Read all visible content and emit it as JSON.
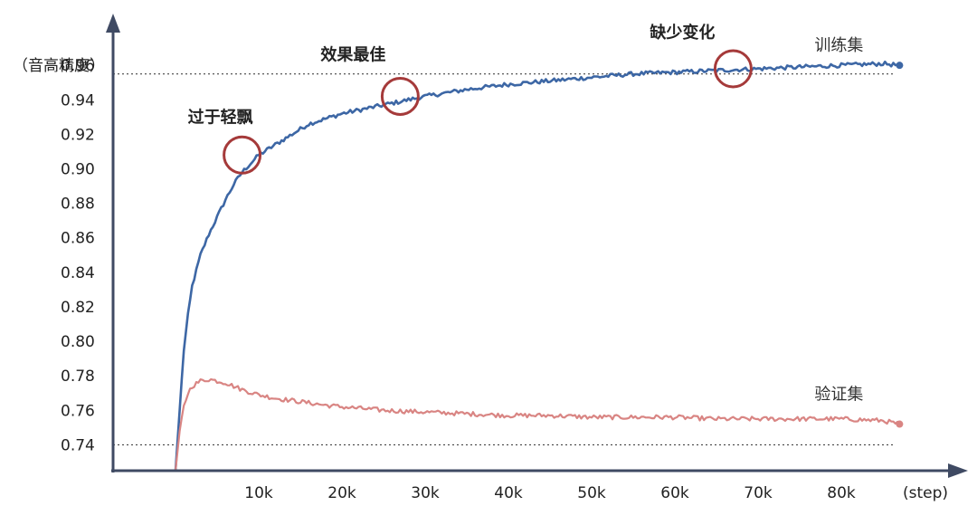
{
  "chart_data": {
    "type": "line",
    "title": "",
    "xlabel": "(step)",
    "ylabel": "（音高精度）",
    "xlim": [
      -7500,
      95000
    ],
    "ylim": [
      0.725,
      0.99
    ],
    "x_ticks": [
      10000,
      20000,
      30000,
      40000,
      50000,
      60000,
      70000,
      80000
    ],
    "x_tick_labels": [
      "10k",
      "20k",
      "30k",
      "40k",
      "50k",
      "60k",
      "70k",
      "80k"
    ],
    "y_ticks": [
      0.74,
      0.76,
      0.78,
      0.8,
      0.82,
      0.84,
      0.86,
      0.88,
      0.9,
      0.92,
      0.94,
      0.96
    ],
    "y_tick_labels": [
      "0.74",
      "0.76",
      "0.78",
      "0.80",
      "0.82",
      "0.84",
      "0.86",
      "0.88",
      "0.90",
      "0.92",
      "0.94",
      "0.96"
    ],
    "reference_lines": [
      0.955,
      0.74
    ],
    "series": [
      {
        "name": "训练集",
        "color": "#3d67a5",
        "x": [
          0,
          500,
          1000,
          1500,
          2000,
          3000,
          4000,
          5000,
          6000,
          7000,
          8000,
          9000,
          10000,
          12000,
          14000,
          16000,
          18000,
          20000,
          22000,
          25000,
          28000,
          30000,
          35000,
          40000,
          45000,
          50000,
          55000,
          60000,
          65000,
          70000,
          75000,
          80000,
          85000,
          87000
        ],
        "y": [
          0.725,
          0.76,
          0.795,
          0.815,
          0.832,
          0.85,
          0.862,
          0.872,
          0.882,
          0.891,
          0.898,
          0.903,
          0.908,
          0.914,
          0.92,
          0.926,
          0.929,
          0.932,
          0.934,
          0.937,
          0.94,
          0.942,
          0.946,
          0.949,
          0.951,
          0.953,
          0.955,
          0.956,
          0.957,
          0.958,
          0.959,
          0.96,
          0.961,
          0.96
        ]
      },
      {
        "name": "验证集",
        "color": "#d98583",
        "x": [
          0,
          500,
          1000,
          1500,
          2000,
          3000,
          4000,
          5000,
          6000,
          7000,
          8000,
          10000,
          12000,
          15000,
          18000,
          20000,
          25000,
          30000,
          35000,
          40000,
          45000,
          50000,
          55000,
          60000,
          65000,
          70000,
          75000,
          80000,
          85000,
          87000
        ],
        "y": [
          0.725,
          0.748,
          0.762,
          0.77,
          0.774,
          0.777,
          0.778,
          0.777,
          0.776,
          0.774,
          0.772,
          0.769,
          0.767,
          0.765,
          0.763,
          0.762,
          0.76,
          0.759,
          0.758,
          0.757,
          0.757,
          0.756,
          0.756,
          0.756,
          0.755,
          0.755,
          0.755,
          0.755,
          0.754,
          0.752
        ]
      }
    ],
    "annotations": [
      {
        "label": "过于轻飘",
        "x": 8000,
        "y": 0.908
      },
      {
        "label": "效果最佳",
        "x": 27000,
        "y": 0.942
      },
      {
        "label": "缺少变化",
        "x": 67000,
        "y": 0.958
      }
    ],
    "legend": "series labels at right end of each line",
    "grid": false
  },
  "colors": {
    "axis": "#3f4a63",
    "annotation_circle": "#a53a3a",
    "reference_line": "#444444"
  }
}
